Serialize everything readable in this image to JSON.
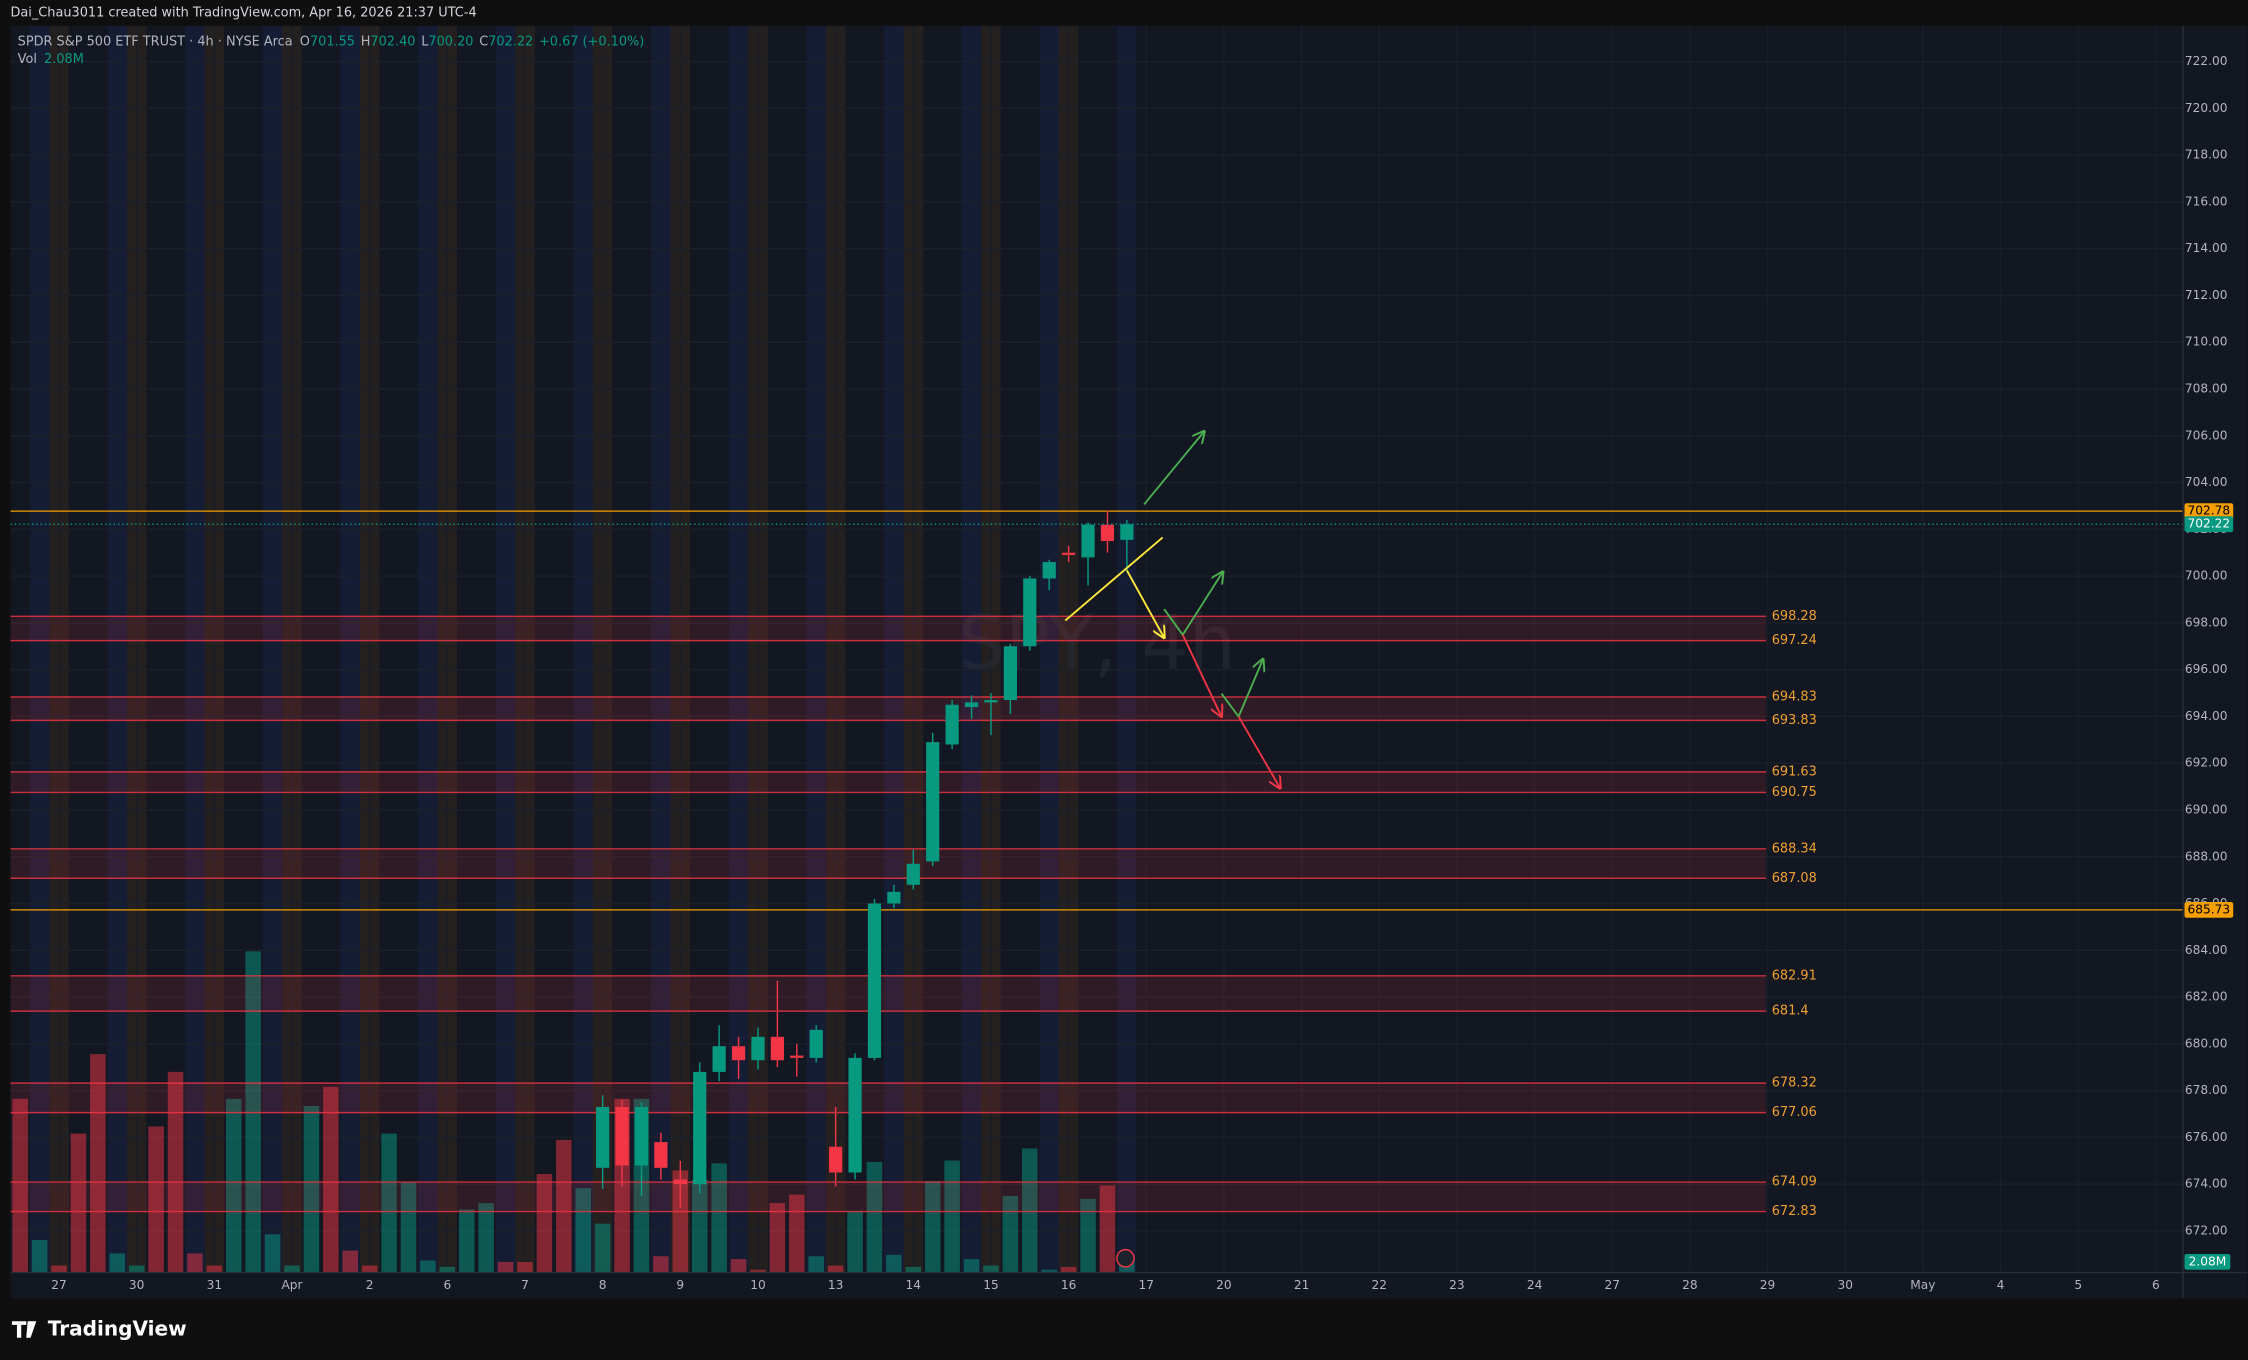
{
  "header": {
    "credit": "Dai_Chau3011 created with TradingView.com, Apr 16, 2026 21:37 UTC-4",
    "symbol": "SPDR S&P 500 ETF TRUST · 4h · NYSE Arca",
    "o_label": "O",
    "o": "701.55",
    "h_label": "H",
    "h": "702.40",
    "l_label": "L",
    "l": "700.20",
    "c_label": "C",
    "c": "702.22",
    "change": "+0.67 (+0.10%)",
    "vol_label": "Vol",
    "vol": "2.08M"
  },
  "footer": {
    "logo": "TradingView"
  },
  "chart_data": {
    "type": "candlestick",
    "watermark": "SPY, 4h",
    "xlim": [
      -0.5,
      111.4
    ],
    "xticks": [
      {
        "value": 2,
        "label": "27"
      },
      {
        "value": 6,
        "label": "30"
      },
      {
        "value": 10,
        "label": "31"
      },
      {
        "value": 14,
        "label": "Apr"
      },
      {
        "value": 18,
        "label": "2"
      },
      {
        "value": 22,
        "label": "6"
      },
      {
        "value": 26,
        "label": "7"
      },
      {
        "value": 30,
        "label": "8"
      },
      {
        "value": 34,
        "label": "9"
      },
      {
        "value": 38,
        "label": "10"
      },
      {
        "value": 42,
        "label": "13"
      },
      {
        "value": 46,
        "label": "14"
      },
      {
        "value": 50,
        "label": "15"
      },
      {
        "value": 54,
        "label": "16"
      },
      {
        "value": 58,
        "label": "17"
      },
      {
        "value": 62,
        "label": "20"
      },
      {
        "value": 66,
        "label": "21"
      },
      {
        "value": 70,
        "label": "22"
      },
      {
        "value": 74,
        "label": "23"
      },
      {
        "value": 78,
        "label": "24"
      },
      {
        "value": 82,
        "label": "27"
      },
      {
        "value": 86,
        "label": "28"
      },
      {
        "value": 90,
        "label": "29"
      },
      {
        "value": 94,
        "label": "30"
      },
      {
        "value": 98,
        "label": "May"
      },
      {
        "value": 102,
        "label": "4"
      },
      {
        "value": 106,
        "label": "5"
      },
      {
        "value": 110,
        "label": "6"
      }
    ],
    "ylim": [
      670.22,
      723.53
    ],
    "yticks": [
      {
        "value": 672,
        "label": "672.00"
      },
      {
        "value": 674,
        "label": "674.00"
      },
      {
        "value": 676,
        "label": "676.00"
      },
      {
        "value": 678,
        "label": "678.00"
      },
      {
        "value": 680,
        "label": "680.00"
      },
      {
        "value": 682,
        "label": "682.00"
      },
      {
        "value": 684,
        "label": "684.00"
      },
      {
        "value": 686,
        "label": "686.00"
      },
      {
        "value": 688,
        "label": "688.00"
      },
      {
        "value": 690,
        "label": "690.00"
      },
      {
        "value": 692,
        "label": "692.00"
      },
      {
        "value": 694,
        "label": "694.00"
      },
      {
        "value": 696,
        "label": "696.00"
      },
      {
        "value": 698,
        "label": "698.00"
      },
      {
        "value": 700,
        "label": "700.00"
      },
      {
        "value": 702,
        "label": "702.00"
      },
      {
        "value": 704,
        "label": "704.00"
      },
      {
        "value": 706,
        "label": "706.00"
      },
      {
        "value": 708,
        "label": "708.00"
      },
      {
        "value": 710,
        "label": "710.00"
      },
      {
        "value": 712,
        "label": "712.00"
      },
      {
        "value": 714,
        "label": "714.00"
      },
      {
        "value": 716,
        "label": "716.00"
      },
      {
        "value": 718,
        "label": "718.00"
      },
      {
        "value": 720,
        "label": "720.00"
      },
      {
        "value": 722,
        "label": "722.00"
      }
    ],
    "up_color": "#089981",
    "down_color": "#f23645",
    "open": [
      null,
      null,
      null,
      null,
      null,
      null,
      null,
      null,
      null,
      null,
      null,
      null,
      null,
      null,
      null,
      null,
      null,
      null,
      null,
      null,
      null,
      null,
      null,
      null,
      null,
      null,
      null,
      null,
      null,
      null,
      674.7,
      677.3,
      674.8,
      675.8,
      674.2,
      674.0,
      678.8,
      679.9,
      679.3,
      680.3,
      679.5,
      679.4,
      675.6,
      674.5,
      679.4,
      686.0,
      686.8,
      687.8,
      692.8,
      694.4,
      694.6,
      694.7,
      697.0,
      699.9,
      701.0,
      700.8,
      702.2,
      701.55
    ],
    "high": [
      null,
      null,
      null,
      null,
      null,
      null,
      null,
      null,
      null,
      null,
      null,
      null,
      null,
      null,
      null,
      null,
      null,
      null,
      null,
      null,
      null,
      null,
      null,
      null,
      null,
      null,
      null,
      null,
      null,
      null,
      677.8,
      677.6,
      677.5,
      676.2,
      675.0,
      679.2,
      680.8,
      680.3,
      680.7,
      682.7,
      680.0,
      680.8,
      677.3,
      679.6,
      686.2,
      686.8,
      688.3,
      693.3,
      694.7,
      694.9,
      695.0,
      697.1,
      700.0,
      700.7,
      701.3,
      702.3,
      702.8,
      702.4
    ],
    "low": [
      null,
      null,
      null,
      null,
      null,
      null,
      null,
      null,
      null,
      null,
      null,
      null,
      null,
      null,
      null,
      null,
      null,
      null,
      null,
      null,
      null,
      null,
      null,
      null,
      null,
      null,
      null,
      null,
      null,
      null,
      673.8,
      673.9,
      673.5,
      674.2,
      673.0,
      673.6,
      678.4,
      678.5,
      678.9,
      679.0,
      678.6,
      679.2,
      673.9,
      674.2,
      679.3,
      685.8,
      686.6,
      687.6,
      692.6,
      693.9,
      693.2,
      694.1,
      696.8,
      699.4,
      700.6,
      699.6,
      701.0,
      700.2
    ],
    "close": [
      null,
      null,
      null,
      null,
      null,
      null,
      null,
      null,
      null,
      null,
      null,
      null,
      null,
      null,
      null,
      null,
      null,
      null,
      null,
      null,
      null,
      null,
      null,
      null,
      null,
      null,
      null,
      null,
      null,
      null,
      677.3,
      674.8,
      677.3,
      674.7,
      674.0,
      678.8,
      679.9,
      679.3,
      680.3,
      679.3,
      679.4,
      680.6,
      674.5,
      679.4,
      686.0,
      686.5,
      687.7,
      692.9,
      694.5,
      694.6,
      694.7,
      697.0,
      699.9,
      700.6,
      700.9,
      702.2,
      701.5,
      702.22
    ],
    "vol_ylim": [
      0,
      175.8
    ],
    "volume": [
      24.5,
      4.6,
      1.0,
      19.6,
      30.8,
      2.7,
      1.0,
      20.6,
      28.3,
      2.7,
      1.0,
      24.5,
      45.3,
      5.4,
      1.0,
      23.5,
      26.2,
      3.1,
      1.0,
      19.6,
      12.7,
      1.7,
      0.8,
      8.9,
      9.8,
      1.5,
      1.5,
      13.9,
      18.7,
      11.9,
      6.9,
      24.5,
      24.5,
      2.3,
      14.4,
      13.1,
      15.4,
      1.9,
      0.4,
      9.8,
      11.0,
      2.3,
      1.0,
      8.7,
      15.6,
      2.5,
      0.8,
      12.9,
      15.8,
      1.9,
      1.0,
      10.8,
      17.5,
      0.4,
      0.8,
      10.4,
      12.3,
      2.08
    ],
    "volume_rising": [
      false,
      true,
      false,
      false,
      false,
      true,
      true,
      false,
      false,
      false,
      false,
      true,
      true,
      true,
      true,
      true,
      false,
      false,
      false,
      true,
      true,
      true,
      true,
      true,
      true,
      false,
      false,
      false,
      false,
      true,
      true,
      false,
      true,
      false,
      false,
      true,
      true,
      false,
      false,
      false,
      false,
      true,
      false,
      true,
      true,
      true,
      true,
      true,
      true,
      true,
      true,
      true,
      true,
      true,
      false,
      true,
      false,
      true
    ],
    "volume_label": "2.08M",
    "zones": [
      {
        "upper": 698.28,
        "lower": 697.24
      },
      {
        "upper": 694.83,
        "lower": 693.83
      },
      {
        "upper": 691.63,
        "lower": 690.75
      },
      {
        "upper": 688.34,
        "lower": 687.08
      },
      {
        "upper": 682.91,
        "lower": 681.4
      },
      {
        "upper": 678.32,
        "lower": 677.06
      },
      {
        "upper": 674.09,
        "lower": 672.83
      }
    ],
    "zone_color": "#f23645",
    "level_label_color": "#f0a030",
    "lines": [
      702.78,
      685.73
    ],
    "line_color": "#f59f00"
  }
}
